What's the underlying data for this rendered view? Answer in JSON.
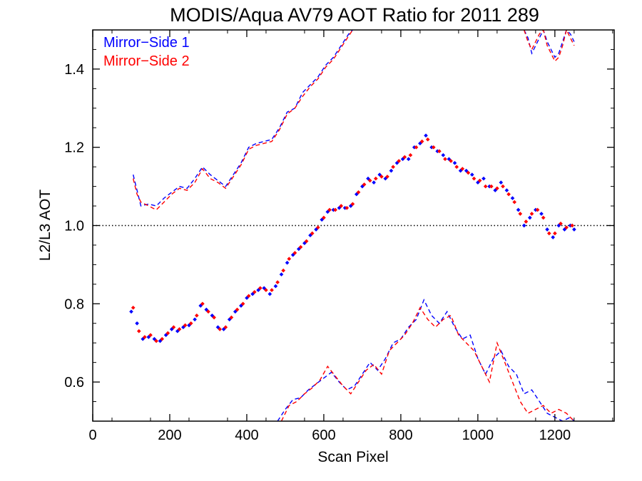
{
  "chart_data": {
    "type": "scatter",
    "title": "MODIS/Aqua AV79 AOT Ratio for 2011 289",
    "xlabel": "Scan Pixel",
    "ylabel": "L2/L3 AOT",
    "xlim": [
      0,
      1354
    ],
    "ylim": [
      0.5,
      1.5
    ],
    "x_ticks": [
      0,
      200,
      400,
      600,
      800,
      1000,
      1200
    ],
    "x_tick_labels": [
      "0",
      "200",
      "400",
      "600",
      "800",
      "1000",
      "1200"
    ],
    "y_ticks": [
      0.6,
      0.8,
      1.0,
      1.2,
      1.4
    ],
    "y_tick_labels": [
      "0.6",
      "0.8",
      "1.0",
      "1.2",
      "1.4"
    ],
    "reference_line": {
      "y": 1.0,
      "style": "dotted"
    },
    "legend_position": "top-left",
    "series": [
      {
        "name": "Mirror−Side 1",
        "color": "#0000ff",
        "x": [
          100,
          115,
          130,
          145,
          160,
          175,
          190,
          205,
          220,
          235,
          250,
          265,
          280,
          295,
          310,
          325,
          340,
          355,
          370,
          385,
          400,
          415,
          430,
          445,
          460,
          475,
          490,
          505,
          520,
          535,
          550,
          565,
          580,
          595,
          610,
          625,
          640,
          655,
          670,
          685,
          700,
          715,
          730,
          745,
          760,
          775,
          790,
          805,
          820,
          835,
          850,
          865,
          880,
          895,
          910,
          925,
          940,
          955,
          970,
          985,
          1000,
          1015,
          1030,
          1045,
          1060,
          1075,
          1090,
          1105,
          1120,
          1135,
          1150,
          1165,
          1180,
          1195,
          1210,
          1225,
          1240,
          1250
        ],
        "y": [
          0.78,
          0.75,
          0.71,
          0.715,
          0.71,
          0.705,
          0.72,
          0.735,
          0.73,
          0.74,
          0.745,
          0.76,
          0.795,
          0.785,
          0.77,
          0.74,
          0.735,
          0.76,
          0.78,
          0.795,
          0.815,
          0.825,
          0.835,
          0.84,
          0.825,
          0.845,
          0.875,
          0.905,
          0.925,
          0.94,
          0.955,
          0.975,
          0.99,
          1.015,
          1.035,
          1.04,
          1.045,
          1.045,
          1.05,
          1.08,
          1.1,
          1.12,
          1.11,
          1.13,
          1.12,
          1.14,
          1.16,
          1.17,
          1.17,
          1.2,
          1.21,
          1.23,
          1.2,
          1.19,
          1.18,
          1.17,
          1.16,
          1.14,
          1.14,
          1.13,
          1.11,
          1.12,
          1.1,
          1.09,
          1.11,
          1.09,
          1.07,
          1.04,
          1.0,
          1.02,
          1.04,
          1.03,
          0.99,
          0.97,
          1.0,
          0.99,
          1.0,
          0.99
        ]
      },
      {
        "name": "Mirror−Side 2",
        "color": "#ff0000",
        "x": [
          105,
          120,
          135,
          150,
          165,
          180,
          195,
          210,
          225,
          240,
          255,
          270,
          285,
          300,
          315,
          330,
          345,
          360,
          375,
          390,
          405,
          420,
          435,
          450,
          465,
          480,
          495,
          510,
          525,
          540,
          555,
          570,
          585,
          600,
          615,
          630,
          645,
          660,
          675,
          690,
          705,
          720,
          735,
          750,
          765,
          780,
          795,
          810,
          825,
          840,
          855,
          870,
          885,
          900,
          915,
          930,
          945,
          960,
          975,
          990,
          1005,
          1020,
          1035,
          1050,
          1065,
          1080,
          1095,
          1110,
          1125,
          1140,
          1155,
          1170,
          1185,
          1200,
          1215,
          1230,
          1245
        ],
        "y": [
          0.79,
          0.73,
          0.715,
          0.72,
          0.705,
          0.71,
          0.725,
          0.74,
          0.735,
          0.745,
          0.75,
          0.77,
          0.8,
          0.78,
          0.765,
          0.735,
          0.74,
          0.765,
          0.785,
          0.8,
          0.82,
          0.83,
          0.84,
          0.835,
          0.835,
          0.855,
          0.885,
          0.915,
          0.93,
          0.945,
          0.96,
          0.98,
          0.995,
          1.02,
          1.04,
          1.04,
          1.05,
          1.045,
          1.055,
          1.085,
          1.105,
          1.115,
          1.12,
          1.125,
          1.125,
          1.15,
          1.165,
          1.175,
          1.18,
          1.2,
          1.215,
          1.22,
          1.2,
          1.19,
          1.17,
          1.165,
          1.15,
          1.145,
          1.135,
          1.12,
          1.115,
          1.1,
          1.1,
          1.095,
          1.1,
          1.08,
          1.06,
          1.03,
          1.01,
          1.03,
          1.04,
          1.02,
          0.98,
          0.98,
          1.005,
          0.995,
          1.0
        ]
      },
      {
        "name": "",
        "color": "#0000ff",
        "style": "dashed",
        "x": [
          105,
          115,
          125,
          145,
          165,
          185,
          205,
          225,
          245,
          265,
          285,
          305,
          325,
          345,
          365,
          385,
          405,
          425,
          445,
          465,
          485,
          505,
          525,
          545,
          565,
          585,
          605,
          625,
          645,
          665,
          675
        ],
        "y": [
          1.13,
          1.09,
          1.05,
          1.055,
          1.05,
          1.07,
          1.085,
          1.1,
          1.095,
          1.12,
          1.15,
          1.13,
          1.115,
          1.1,
          1.13,
          1.16,
          1.2,
          1.21,
          1.215,
          1.22,
          1.25,
          1.29,
          1.3,
          1.34,
          1.36,
          1.38,
          1.41,
          1.43,
          1.46,
          1.49,
          1.5
        ]
      },
      {
        "name": "",
        "color": "#ff0000",
        "style": "dashed",
        "x": [
          105,
          115,
          125,
          145,
          165,
          185,
          205,
          225,
          245,
          265,
          285,
          305,
          325,
          345,
          365,
          385,
          405,
          425,
          445,
          465,
          485,
          505,
          525,
          545,
          565,
          585,
          605,
          625,
          645,
          665,
          675
        ],
        "y": [
          1.12,
          1.08,
          1.06,
          1.05,
          1.04,
          1.06,
          1.08,
          1.095,
          1.09,
          1.11,
          1.145,
          1.12,
          1.11,
          1.095,
          1.125,
          1.155,
          1.195,
          1.205,
          1.21,
          1.215,
          1.245,
          1.285,
          1.3,
          1.33,
          1.355,
          1.375,
          1.405,
          1.425,
          1.455,
          1.485,
          1.5
        ]
      },
      {
        "name": "",
        "color": "#0000ff",
        "style": "dashed",
        "x": [
          1120,
          1130,
          1140,
          1150,
          1160,
          1170,
          1180,
          1190,
          1200,
          1210,
          1220,
          1230,
          1240,
          1250
        ],
        "y": [
          1.5,
          1.48,
          1.44,
          1.46,
          1.48,
          1.5,
          1.47,
          1.45,
          1.43,
          1.44,
          1.47,
          1.5,
          1.49,
          1.47
        ]
      },
      {
        "name": "",
        "color": "#ff0000",
        "style": "dashed",
        "x": [
          1120,
          1130,
          1140,
          1150,
          1160,
          1170,
          1180,
          1190,
          1200,
          1210,
          1220,
          1230,
          1240,
          1250
        ],
        "y": [
          1.5,
          1.47,
          1.45,
          1.47,
          1.49,
          1.5,
          1.46,
          1.44,
          1.42,
          1.43,
          1.46,
          1.5,
          1.48,
          1.46
        ]
      },
      {
        "name": "",
        "color": "#0000ff",
        "style": "dashed",
        "x": [
          480,
          500,
          520,
          540,
          560,
          580,
          600,
          620,
          640,
          660,
          680,
          700,
          720,
          740,
          760,
          780,
          800,
          820,
          840,
          860,
          880,
          900,
          920,
          940,
          960,
          980,
          1000,
          1020,
          1040,
          1060,
          1080,
          1100,
          1120,
          1140,
          1160,
          1180,
          1200,
          1220,
          1240,
          1250
        ],
        "y": [
          0.5,
          0.53,
          0.555,
          0.56,
          0.58,
          0.595,
          0.61,
          0.625,
          0.6,
          0.58,
          0.59,
          0.62,
          0.65,
          0.63,
          0.66,
          0.7,
          0.71,
          0.74,
          0.76,
          0.81,
          0.77,
          0.75,
          0.78,
          0.74,
          0.71,
          0.72,
          0.66,
          0.62,
          0.66,
          0.68,
          0.64,
          0.62,
          0.57,
          0.58,
          0.55,
          0.52,
          0.51,
          0.5,
          0.51,
          0.5
        ]
      },
      {
        "name": "",
        "color": "#ff0000",
        "style": "dashed",
        "x": [
          490,
          510,
          530,
          550,
          570,
          590,
          610,
          630,
          650,
          670,
          690,
          710,
          730,
          750,
          770,
          790,
          810,
          830,
          850,
          870,
          890,
          910,
          930,
          950,
          970,
          990,
          1010,
          1030,
          1050,
          1070,
          1090,
          1110,
          1130,
          1150,
          1170,
          1190,
          1210,
          1230,
          1250
        ],
        "y": [
          0.5,
          0.54,
          0.55,
          0.57,
          0.585,
          0.605,
          0.64,
          0.615,
          0.59,
          0.57,
          0.6,
          0.63,
          0.645,
          0.62,
          0.68,
          0.7,
          0.72,
          0.75,
          0.79,
          0.76,
          0.74,
          0.76,
          0.77,
          0.72,
          0.7,
          0.68,
          0.64,
          0.6,
          0.7,
          0.65,
          0.6,
          0.55,
          0.52,
          0.53,
          0.54,
          0.52,
          0.53,
          0.52,
          0.5
        ]
      }
    ]
  }
}
